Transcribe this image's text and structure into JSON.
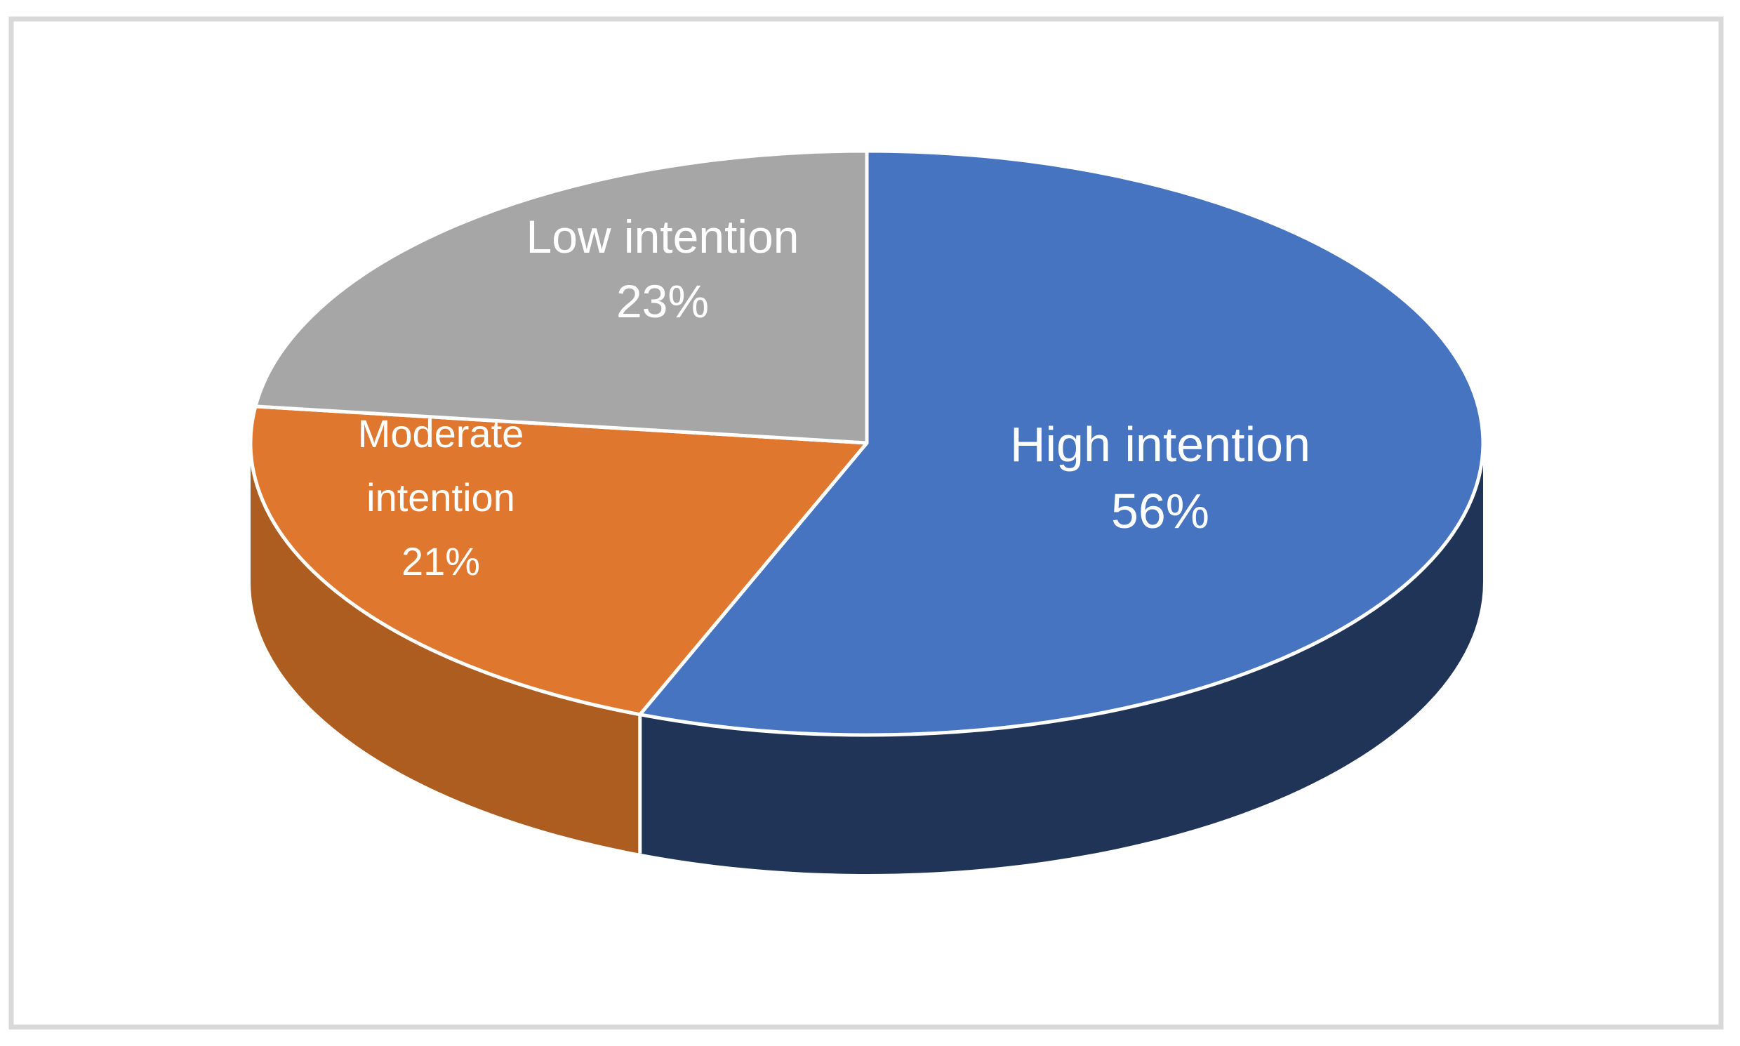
{
  "frame": {
    "background_color": "#FFFFFF",
    "border_color": "#D9D9D9"
  },
  "chart_data": {
    "type": "pie",
    "style": "3d",
    "title": "",
    "legend": "none",
    "grid": "off",
    "start_at_12_oclock": true,
    "direction": "clockwise",
    "data_labels": "category name and percentage inside slices",
    "label_text_color": "#FFFFFF",
    "separator_color": "#FFFFFF",
    "categories": [
      "High intention",
      "Moderate intention",
      "Low intention"
    ],
    "values": [
      56,
      21,
      23
    ],
    "slices": [
      {
        "label": "High intention",
        "value": 56,
        "pct_label": "56%",
        "color": "#4674C1",
        "side_color": "#203457",
        "label_lines": [
          "High intention",
          "56%"
        ]
      },
      {
        "label": "Moderate intention",
        "value": 21,
        "pct_label": "21%",
        "color": "#E0772F",
        "side_color": "#AE5D20",
        "label_lines": [
          "Moderate",
          "intention",
          "21%"
        ]
      },
      {
        "label": "Low intention",
        "value": 23,
        "pct_label": "23%",
        "color": "#A6A6A6",
        "side_color": null,
        "label_lines": [
          "Low intention",
          "23%"
        ]
      }
    ]
  }
}
